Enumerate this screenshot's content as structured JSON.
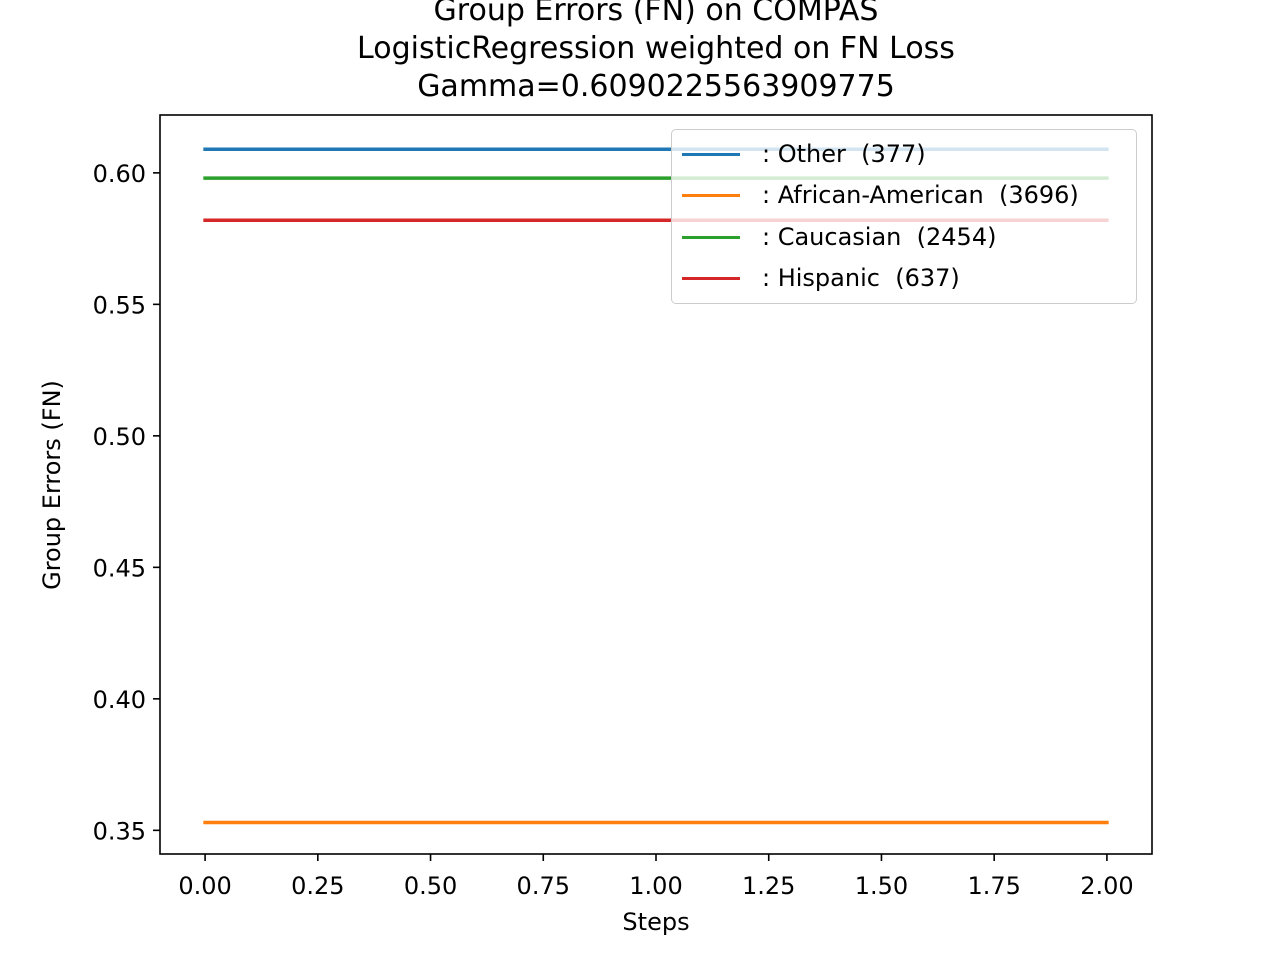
{
  "chart_data": {
    "type": "line",
    "title_lines": [
      "Group Errors (FN) on COMPAS",
      "LogisticRegression weighted on FN Loss",
      "Gamma=0.6090225563909775"
    ],
    "xlabel": "Steps",
    "ylabel": "Group Errors (FN)",
    "x": [
      0,
      1,
      2
    ],
    "xlim": [
      -0.1,
      2.1
    ],
    "ylim": [
      0.341,
      0.622
    ],
    "xticks": [
      0.0,
      0.25,
      0.5,
      0.75,
      1.0,
      1.25,
      1.5,
      1.75,
      2.0
    ],
    "xtick_labels": [
      "0.00",
      "0.25",
      "0.50",
      "0.75",
      "1.00",
      "1.25",
      "1.50",
      "1.75",
      "2.00"
    ],
    "yticks": [
      0.35,
      0.4,
      0.45,
      0.5,
      0.55,
      0.6
    ],
    "ytick_labels": [
      "0.35",
      "0.40",
      "0.45",
      "0.50",
      "0.55",
      "0.60"
    ],
    "grid": false,
    "legend_position": "top-right",
    "series": [
      {
        "name": ": Other  (377)",
        "color": "#1f77b4",
        "values": [
          0.609,
          0.609,
          0.609
        ]
      },
      {
        "name": ": African-American  (3696)",
        "color": "#ff7f0e",
        "values": [
          0.353,
          0.353,
          0.353
        ]
      },
      {
        "name": ": Caucasian  (2454)",
        "color": "#2ca02c",
        "values": [
          0.598,
          0.598,
          0.598
        ]
      },
      {
        "name": ": Hispanic  (637)",
        "color": "#d62728",
        "values": [
          0.582,
          0.582,
          0.582
        ]
      }
    ]
  }
}
